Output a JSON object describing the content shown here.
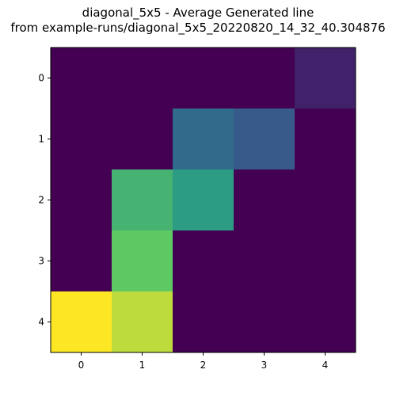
{
  "chart_data": {
    "type": "heatmap",
    "title": "diagonal_5x5 - Average Generated line",
    "subtitle": "from example-runs/diagonal_5x5_20220820_14_32_40.304876",
    "xlabel": "",
    "ylabel": "",
    "x_ticks": [
      "0",
      "1",
      "2",
      "3",
      "4"
    ],
    "y_ticks": [
      "0",
      "1",
      "2",
      "3",
      "4"
    ],
    "colormap": "viridis",
    "grid": false,
    "values": [
      [
        0.0,
        0.0,
        0.0,
        0.0,
        0.1
      ],
      [
        0.0,
        0.0,
        0.35,
        0.28,
        0.0
      ],
      [
        0.0,
        0.65,
        0.55,
        0.0,
        0.0
      ],
      [
        0.0,
        0.75,
        0.0,
        0.0,
        0.0
      ],
      [
        1.0,
        0.9,
        0.0,
        0.0,
        0.0
      ]
    ]
  }
}
